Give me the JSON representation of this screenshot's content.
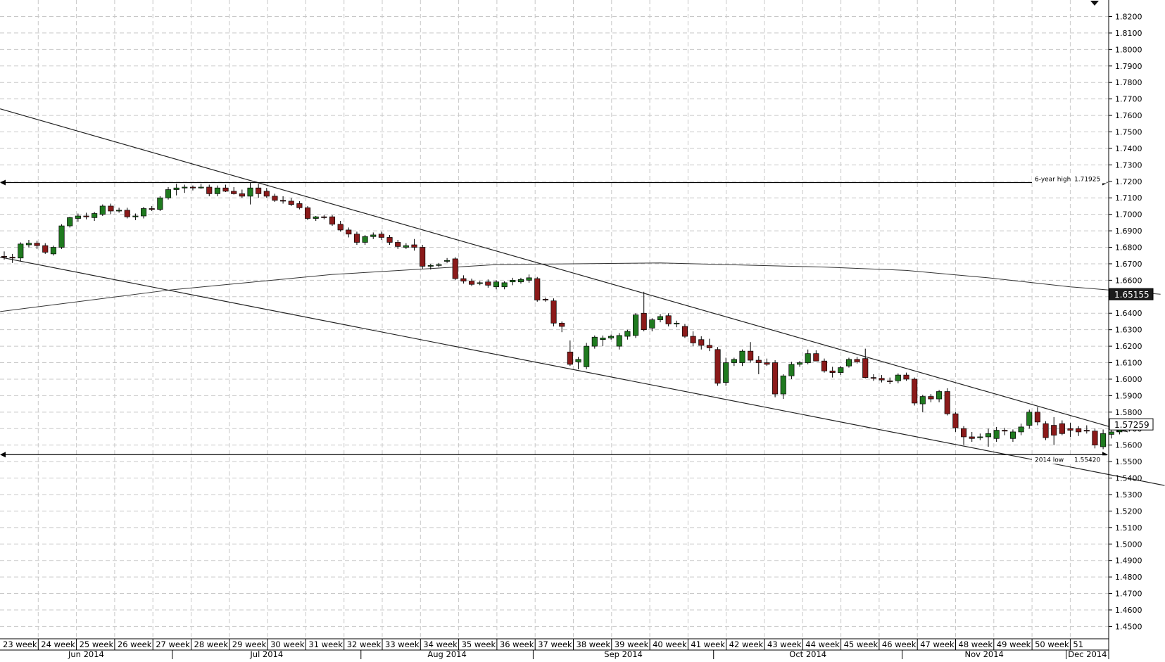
{
  "chart_data": {
    "type": "candlestick",
    "title": "",
    "instrument": "",
    "timeframe": "daily",
    "y_axis": {
      "position": "right",
      "ylim": [
        1.445,
        1.825
      ],
      "ticks": [
        "1.8200",
        "1.8100",
        "1.8000",
        "1.7900",
        "1.7800",
        "1.7700",
        "1.7600",
        "1.7500",
        "1.7400",
        "1.7300",
        "1.7200",
        "1.7100",
        "1.7000",
        "1.6900",
        "1.6800",
        "1.6700",
        "1.6600",
        "1.6500",
        "1.6400",
        "1.6300",
        "1.6200",
        "1.6100",
        "1.6000",
        "1.5900",
        "1.5800",
        "1.5700",
        "1.5600",
        "1.5500",
        "1.5400",
        "1.5300",
        "1.5200",
        "1.5100",
        "1.5000",
        "1.4900",
        "1.4800",
        "1.4700",
        "1.4600",
        "1.4500"
      ]
    },
    "x_axis": {
      "weeks": [
        "23 week",
        "24 week",
        "25 week",
        "26 week",
        "27 week",
        "28 week",
        "29 week",
        "30 week",
        "31 week",
        "32 week",
        "33 week",
        "34 week",
        "35 week",
        "36 week",
        "37 week",
        "38 week",
        "39 week",
        "40 week",
        "41 week",
        "42 week",
        "43 week",
        "44 week",
        "45 week",
        "46 week",
        "47 week",
        "48 week",
        "49 week",
        "50 week",
        "51"
      ],
      "months": [
        "Jun 2014",
        "Jul 2014",
        "Aug 2014",
        "Sep 2014",
        "Oct 2014",
        "Nov 2014",
        "Dec 2014"
      ],
      "month_start_bar": [
        0,
        21,
        44,
        65,
        87,
        110,
        130
      ]
    },
    "grid": true,
    "candles": [
      {
        "o": 1.6745,
        "h": 1.6775,
        "l": 1.6725,
        "c": 1.674
      },
      {
        "o": 1.674,
        "h": 1.676,
        "l": 1.6705,
        "c": 1.6735
      },
      {
        "o": 1.6735,
        "h": 1.683,
        "l": 1.6715,
        "c": 1.682
      },
      {
        "o": 1.6815,
        "h": 1.6845,
        "l": 1.68,
        "c": 1.6825
      },
      {
        "o": 1.6825,
        "h": 1.684,
        "l": 1.679,
        "c": 1.681
      },
      {
        "o": 1.681,
        "h": 1.6825,
        "l": 1.676,
        "c": 1.677
      },
      {
        "o": 1.676,
        "h": 1.681,
        "l": 1.675,
        "c": 1.68
      },
      {
        "o": 1.68,
        "h": 1.694,
        "l": 1.679,
        "c": 1.693
      },
      {
        "o": 1.693,
        "h": 1.6985,
        "l": 1.692,
        "c": 1.698
      },
      {
        "o": 1.6975,
        "h": 1.7005,
        "l": 1.6955,
        "c": 1.699
      },
      {
        "o": 1.699,
        "h": 1.701,
        "l": 1.697,
        "c": 1.6985
      },
      {
        "o": 1.698,
        "h": 1.7015,
        "l": 1.696,
        "c": 1.7005
      },
      {
        "o": 1.7,
        "h": 1.706,
        "l": 1.699,
        "c": 1.705
      },
      {
        "o": 1.705,
        "h": 1.7065,
        "l": 1.7,
        "c": 1.702
      },
      {
        "o": 1.702,
        "h": 1.704,
        "l": 1.701,
        "c": 1.7025
      },
      {
        "o": 1.7025,
        "h": 1.704,
        "l": 1.6975,
        "c": 1.6985
      },
      {
        "o": 1.6985,
        "h": 1.7005,
        "l": 1.6965,
        "c": 1.699
      },
      {
        "o": 1.699,
        "h": 1.7045,
        "l": 1.6975,
        "c": 1.7035
      },
      {
        "o": 1.7035,
        "h": 1.705,
        "l": 1.702,
        "c": 1.703
      },
      {
        "o": 1.703,
        "h": 1.711,
        "l": 1.702,
        "c": 1.71
      },
      {
        "o": 1.71,
        "h": 1.7165,
        "l": 1.709,
        "c": 1.715
      },
      {
        "o": 1.715,
        "h": 1.7185,
        "l": 1.7115,
        "c": 1.716
      },
      {
        "o": 1.716,
        "h": 1.718,
        "l": 1.713,
        "c": 1.7165
      },
      {
        "o": 1.7165,
        "h": 1.7175,
        "l": 1.7145,
        "c": 1.716
      },
      {
        "o": 1.716,
        "h": 1.7185,
        "l": 1.7155,
        "c": 1.7165
      },
      {
        "o": 1.7165,
        "h": 1.718,
        "l": 1.711,
        "c": 1.7125
      },
      {
        "o": 1.7125,
        "h": 1.7175,
        "l": 1.711,
        "c": 1.716
      },
      {
        "o": 1.716,
        "h": 1.718,
        "l": 1.7135,
        "c": 1.714
      },
      {
        "o": 1.714,
        "h": 1.7165,
        "l": 1.712,
        "c": 1.7125
      },
      {
        "o": 1.7125,
        "h": 1.715,
        "l": 1.71,
        "c": 1.711
      },
      {
        "o": 1.711,
        "h": 1.7192,
        "l": 1.706,
        "c": 1.716
      },
      {
        "o": 1.716,
        "h": 1.7185,
        "l": 1.71,
        "c": 1.7125
      },
      {
        "o": 1.714,
        "h": 1.716,
        "l": 1.71,
        "c": 1.711
      },
      {
        "o": 1.711,
        "h": 1.7125,
        "l": 1.7075,
        "c": 1.7085
      },
      {
        "o": 1.7085,
        "h": 1.711,
        "l": 1.7065,
        "c": 1.708
      },
      {
        "o": 1.708,
        "h": 1.71,
        "l": 1.705,
        "c": 1.706
      },
      {
        "o": 1.7065,
        "h": 1.708,
        "l": 1.703,
        "c": 1.704
      },
      {
        "o": 1.704,
        "h": 1.705,
        "l": 1.6965,
        "c": 1.6975
      },
      {
        "o": 1.6975,
        "h": 1.699,
        "l": 1.696,
        "c": 1.6985
      },
      {
        "o": 1.6985,
        "h": 1.6995,
        "l": 1.697,
        "c": 1.698
      },
      {
        "o": 1.6985,
        "h": 1.6995,
        "l": 1.693,
        "c": 1.694
      },
      {
        "o": 1.694,
        "h": 1.696,
        "l": 1.6895,
        "c": 1.6905
      },
      {
        "o": 1.6905,
        "h": 1.692,
        "l": 1.686,
        "c": 1.688
      },
      {
        "o": 1.688,
        "h": 1.6895,
        "l": 1.6815,
        "c": 1.683
      },
      {
        "o": 1.683,
        "h": 1.6875,
        "l": 1.6815,
        "c": 1.6865
      },
      {
        "o": 1.6865,
        "h": 1.689,
        "l": 1.685,
        "c": 1.6875
      },
      {
        "o": 1.688,
        "h": 1.6895,
        "l": 1.6845,
        "c": 1.686
      },
      {
        "o": 1.686,
        "h": 1.6875,
        "l": 1.6815,
        "c": 1.683
      },
      {
        "o": 1.683,
        "h": 1.6845,
        "l": 1.679,
        "c": 1.6805
      },
      {
        "o": 1.68,
        "h": 1.6825,
        "l": 1.679,
        "c": 1.681
      },
      {
        "o": 1.6815,
        "h": 1.685,
        "l": 1.678,
        "c": 1.68
      },
      {
        "o": 1.68,
        "h": 1.6815,
        "l": 1.667,
        "c": 1.6685
      },
      {
        "o": 1.6685,
        "h": 1.67,
        "l": 1.6665,
        "c": 1.669
      },
      {
        "o": 1.669,
        "h": 1.6705,
        "l": 1.668,
        "c": 1.6695
      },
      {
        "o": 1.672,
        "h": 1.6735,
        "l": 1.6705,
        "c": 1.672
      },
      {
        "o": 1.673,
        "h": 1.674,
        "l": 1.66,
        "c": 1.661
      },
      {
        "o": 1.661,
        "h": 1.663,
        "l": 1.658,
        "c": 1.6595
      },
      {
        "o": 1.6595,
        "h": 1.661,
        "l": 1.6565,
        "c": 1.6575
      },
      {
        "o": 1.658,
        "h": 1.6595,
        "l": 1.657,
        "c": 1.6585
      },
      {
        "o": 1.659,
        "h": 1.6605,
        "l": 1.6555,
        "c": 1.657
      },
      {
        "o": 1.656,
        "h": 1.66,
        "l": 1.6545,
        "c": 1.659
      },
      {
        "o": 1.656,
        "h": 1.6595,
        "l": 1.6545,
        "c": 1.6585
      },
      {
        "o": 1.659,
        "h": 1.6615,
        "l": 1.657,
        "c": 1.66
      },
      {
        "o": 1.659,
        "h": 1.6615,
        "l": 1.658,
        "c": 1.6605
      },
      {
        "o": 1.66,
        "h": 1.6635,
        "l": 1.6585,
        "c": 1.6615
      },
      {
        "o": 1.661,
        "h": 1.662,
        "l": 1.647,
        "c": 1.648
      },
      {
        "o": 1.6485,
        "h": 1.6495,
        "l": 1.647,
        "c": 1.648
      },
      {
        "o": 1.6475,
        "h": 1.649,
        "l": 1.632,
        "c": 1.634
      },
      {
        "o": 1.634,
        "h": 1.635,
        "l": 1.6285,
        "c": 1.632
      },
      {
        "o": 1.6165,
        "h": 1.6235,
        "l": 1.608,
        "c": 1.609
      },
      {
        "o": 1.6105,
        "h": 1.6135,
        "l": 1.606,
        "c": 1.612
      },
      {
        "o": 1.6075,
        "h": 1.622,
        "l": 1.606,
        "c": 1.62
      },
      {
        "o": 1.62,
        "h": 1.6265,
        "l": 1.6185,
        "c": 1.6255
      },
      {
        "o": 1.624,
        "h": 1.6265,
        "l": 1.62,
        "c": 1.625
      },
      {
        "o": 1.625,
        "h": 1.627,
        "l": 1.624,
        "c": 1.626
      },
      {
        "o": 1.62,
        "h": 1.628,
        "l": 1.618,
        "c": 1.6265
      },
      {
        "o": 1.626,
        "h": 1.63,
        "l": 1.624,
        "c": 1.629
      },
      {
        "o": 1.6265,
        "h": 1.64,
        "l": 1.625,
        "c": 1.639
      },
      {
        "o": 1.64,
        "h": 1.653,
        "l": 1.629,
        "c": 1.63
      },
      {
        "o": 1.631,
        "h": 1.637,
        "l": 1.629,
        "c": 1.636
      },
      {
        "o": 1.636,
        "h": 1.6395,
        "l": 1.6345,
        "c": 1.638
      },
      {
        "o": 1.6385,
        "h": 1.64,
        "l": 1.632,
        "c": 1.6335
      },
      {
        "o": 1.6335,
        "h": 1.6355,
        "l": 1.6315,
        "c": 1.634
      },
      {
        "o": 1.632,
        "h": 1.6335,
        "l": 1.625,
        "c": 1.626
      },
      {
        "o": 1.626,
        "h": 1.629,
        "l": 1.62,
        "c": 1.622
      },
      {
        "o": 1.624,
        "h": 1.626,
        "l": 1.618,
        "c": 1.6205
      },
      {
        "o": 1.6205,
        "h": 1.6245,
        "l": 1.617,
        "c": 1.619
      },
      {
        "o": 1.618,
        "h": 1.6195,
        "l": 1.596,
        "c": 1.5975
      },
      {
        "o": 1.598,
        "h": 1.613,
        "l": 1.596,
        "c": 1.61
      },
      {
        "o": 1.61,
        "h": 1.613,
        "l": 1.608,
        "c": 1.612
      },
      {
        "o": 1.61,
        "h": 1.618,
        "l": 1.608,
        "c": 1.617
      },
      {
        "o": 1.617,
        "h": 1.6225,
        "l": 1.61,
        "c": 1.6115
      },
      {
        "o": 1.6115,
        "h": 1.614,
        "l": 1.603,
        "c": 1.61
      },
      {
        "o": 1.61,
        "h": 1.6125,
        "l": 1.608,
        "c": 1.609
      },
      {
        "o": 1.61,
        "h": 1.6115,
        "l": 1.589,
        "c": 1.591
      },
      {
        "o": 1.591,
        "h": 1.603,
        "l": 1.588,
        "c": 1.602
      },
      {
        "o": 1.602,
        "h": 1.6105,
        "l": 1.6,
        "c": 1.609
      },
      {
        "o": 1.609,
        "h": 1.611,
        "l": 1.6075,
        "c": 1.61
      },
      {
        "o": 1.61,
        "h": 1.618,
        "l": 1.609,
        "c": 1.6155
      },
      {
        "o": 1.6155,
        "h": 1.6175,
        "l": 1.613,
        "c": 1.611
      },
      {
        "o": 1.611,
        "h": 1.6125,
        "l": 1.604,
        "c": 1.605
      },
      {
        "o": 1.605,
        "h": 1.6075,
        "l": 1.601,
        "c": 1.604
      },
      {
        "o": 1.604,
        "h": 1.608,
        "l": 1.6025,
        "c": 1.607
      },
      {
        "o": 1.608,
        "h": 1.613,
        "l": 1.607,
        "c": 1.612
      },
      {
        "o": 1.612,
        "h": 1.6135,
        "l": 1.6095,
        "c": 1.6105
      },
      {
        "o": 1.6125,
        "h": 1.6185,
        "l": 1.6005,
        "c": 1.601
      },
      {
        "o": 1.601,
        "h": 1.603,
        "l": 1.599,
        "c": 1.6005
      },
      {
        "o": 1.6005,
        "h": 1.6025,
        "l": 1.598,
        "c": 1.5995
      },
      {
        "o": 1.599,
        "h": 1.601,
        "l": 1.597,
        "c": 1.5985
      },
      {
        "o": 1.599,
        "h": 1.6035,
        "l": 1.5975,
        "c": 1.6025
      },
      {
        "o": 1.6025,
        "h": 1.604,
        "l": 1.599,
        "c": 1.6
      },
      {
        "o": 1.6,
        "h": 1.601,
        "l": 1.584,
        "c": 1.5855
      },
      {
        "o": 1.585,
        "h": 1.5905,
        "l": 1.58,
        "c": 1.5895
      },
      {
        "o": 1.5895,
        "h": 1.591,
        "l": 1.586,
        "c": 1.588
      },
      {
        "o": 1.588,
        "h": 1.5935,
        "l": 1.586,
        "c": 1.5925
      },
      {
        "o": 1.5925,
        "h": 1.5945,
        "l": 1.578,
        "c": 1.579
      },
      {
        "o": 1.579,
        "h": 1.58,
        "l": 1.568,
        "c": 1.5705
      },
      {
        "o": 1.57,
        "h": 1.5715,
        "l": 1.56,
        "c": 1.565
      },
      {
        "o": 1.565,
        "h": 1.568,
        "l": 1.562,
        "c": 1.564
      },
      {
        "o": 1.565,
        "h": 1.567,
        "l": 1.563,
        "c": 1.565
      },
      {
        "o": 1.565,
        "h": 1.57,
        "l": 1.559,
        "c": 1.567
      },
      {
        "o": 1.564,
        "h": 1.571,
        "l": 1.562,
        "c": 1.569
      },
      {
        "o": 1.569,
        "h": 1.5705,
        "l": 1.566,
        "c": 1.5685
      },
      {
        "o": 1.564,
        "h": 1.5695,
        "l": 1.562,
        "c": 1.568
      },
      {
        "o": 1.568,
        "h": 1.573,
        "l": 1.566,
        "c": 1.571
      },
      {
        "o": 1.572,
        "h": 1.5815,
        "l": 1.57,
        "c": 1.58
      },
      {
        "o": 1.58,
        "h": 1.583,
        "l": 1.572,
        "c": 1.574
      },
      {
        "o": 1.573,
        "h": 1.5745,
        "l": 1.563,
        "c": 1.5645
      },
      {
        "o": 1.572,
        "h": 1.577,
        "l": 1.56,
        "c": 1.566
      },
      {
        "o": 1.573,
        "h": 1.575,
        "l": 1.566,
        "c": 1.567
      },
      {
        "o": 1.57,
        "h": 1.5735,
        "l": 1.565,
        "c": 1.569
      },
      {
        "o": 1.57,
        "h": 1.5715,
        "l": 1.5655,
        "c": 1.568
      },
      {
        "o": 1.569,
        "h": 1.572,
        "l": 1.567,
        "c": 1.5685
      },
      {
        "o": 1.5685,
        "h": 1.57,
        "l": 1.558,
        "c": 1.56
      },
      {
        "o": 1.559,
        "h": 1.5695,
        "l": 1.5575,
        "c": 1.567
      },
      {
        "o": 1.5665,
        "h": 1.569,
        "l": 1.564,
        "c": 1.568
      },
      {
        "o": 1.568,
        "h": 1.5725,
        "l": 1.5665,
        "c": 1.572
      },
      {
        "o": 1.572,
        "h": 1.576,
        "l": 1.57,
        "c": 1.5745
      },
      {
        "o": 1.5745,
        "h": 1.5755,
        "l": 1.5715,
        "c": 1.573
      },
      {
        "o": 1.573,
        "h": 1.575,
        "l": 1.5715,
        "c": 1.5726
      }
    ],
    "lines": [
      {
        "name": "upper-trendline",
        "x0": -0.5,
        "y0": 1.764,
        "x1": 137,
        "y1": 1.568
      },
      {
        "name": "lower-trendline",
        "x0": -0.5,
        "y0": 1.674,
        "x1": 141.5,
        "y1": 1.5355
      }
    ],
    "moving_average_points": [
      [
        -0.5,
        1.641
      ],
      [
        20,
        1.654
      ],
      [
        40,
        1.6635
      ],
      [
        60,
        1.6695
      ],
      [
        80,
        1.6705
      ],
      [
        100,
        1.668
      ],
      [
        110,
        1.666
      ],
      [
        120,
        1.6615
      ],
      [
        130,
        1.656
      ],
      [
        141,
        1.6515
      ]
    ],
    "levels": [
      {
        "label": "6-year high",
        "value": "1.71925",
        "y": 1.71925
      },
      {
        "label": "2014 low",
        "value": "1.55420",
        "y": 1.5542
      }
    ],
    "price_tags": [
      {
        "value": "1.65155",
        "y": 1.65155,
        "style": "dark"
      },
      {
        "value": "1.57259",
        "y": 1.57259,
        "style": "light"
      }
    ],
    "colors": {
      "bull": "#1f7a1f",
      "bear": "#8b1a1a",
      "grid": "#c8c8c8",
      "line": "#222222",
      "tag_dark": "#1c1c1c"
    }
  }
}
